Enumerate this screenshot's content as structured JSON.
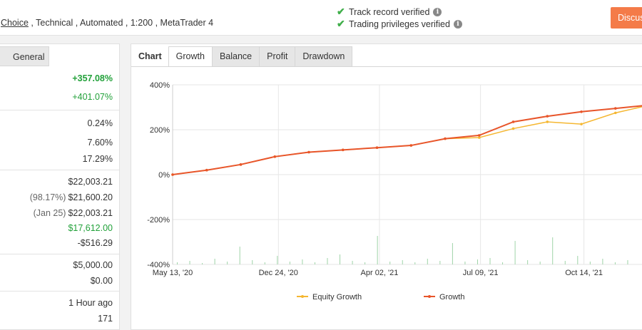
{
  "header": {
    "meta_link": "Choice",
    "meta_rest": " , Technical , Automated , 1:200 , MetaTrader 4",
    "verify_track": "Track record verified",
    "verify_trading": "Trading privileges verified",
    "discuss_label": "Discuss"
  },
  "left_panel": {
    "tab_label": "General",
    "rows": [
      {
        "sub": "",
        "value": "+357.08%",
        "style": "green bold"
      },
      {
        "sub": "",
        "value": "+401.07%",
        "style": "green"
      },
      {
        "sub": "",
        "value": "0.24%",
        "style": ""
      },
      {
        "sub": "",
        "value": "7.60%",
        "style": ""
      },
      {
        "sub": "",
        "value": "17.29%",
        "style": ""
      },
      {
        "sub": "",
        "value": "$22,003.21",
        "style": ""
      },
      {
        "sub": "(98.17%)",
        "value": "$21,600.20",
        "style": ""
      },
      {
        "sub": "(Jan 25)",
        "value": "$22,003.21",
        "style": ""
      },
      {
        "sub": "",
        "value": "$17,612.00",
        "style": "green"
      },
      {
        "sub": "",
        "value": "-$516.29",
        "style": ""
      },
      {
        "sub": "",
        "value": "$5,000.00",
        "style": ""
      },
      {
        "sub": "",
        "value": "$0.00",
        "style": ""
      },
      {
        "sub": "",
        "value": "1 Hour ago",
        "style": ""
      },
      {
        "sub": "",
        "value": "171",
        "style": ""
      }
    ]
  },
  "chart_panel": {
    "label": "Chart",
    "tabs": [
      "Growth",
      "Balance",
      "Profit",
      "Drawdown"
    ],
    "active_tab": "Growth"
  },
  "colors": {
    "growth": "#e8552a",
    "equity": "#f5b731",
    "bars": "#9fd4a8",
    "green": "#22a13a",
    "accent": "#f47b48"
  },
  "chart_data": {
    "type": "line",
    "ylim": [
      -400,
      400
    ],
    "yticks": [
      "400%",
      "200%",
      "0%",
      "-200%",
      "-400%"
    ],
    "xticks": [
      "May 13, '20",
      "Dec 24, '20",
      "Apr 02, '21",
      "Jul 09, '21",
      "Oct 14, '21"
    ],
    "series": [
      {
        "name": "Equity Growth",
        "values": [
          0,
          20,
          45,
          80,
          100,
          110,
          120,
          130,
          160,
          165,
          205,
          235,
          225,
          275,
          310
        ]
      },
      {
        "name": "Growth",
        "values": [
          0,
          20,
          45,
          80,
          100,
          110,
          120,
          130,
          160,
          175,
          235,
          260,
          280,
          295,
          310
        ]
      }
    ]
  }
}
